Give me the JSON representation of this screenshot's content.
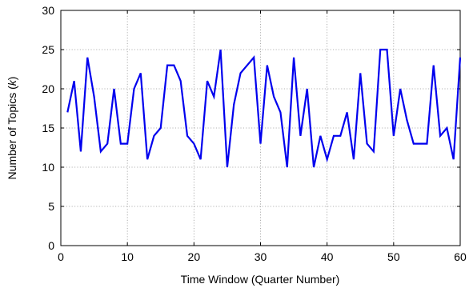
{
  "chart_data": {
    "type": "line",
    "title": "",
    "xlabel": "Time Window (Quarter Number)",
    "ylabel_prefix": "Number of Topics (",
    "ylabel_var": "k",
    "ylabel_suffix": ")",
    "xlim": [
      0,
      60
    ],
    "ylim": [
      0,
      30
    ],
    "xticks": [
      0,
      10,
      20,
      30,
      40,
      50,
      60
    ],
    "yticks": [
      0,
      5,
      10,
      15,
      20,
      25,
      30
    ],
    "grid": true,
    "line_color": "#0000ee",
    "series": [
      {
        "x": [
          1,
          2,
          3,
          4,
          5,
          6,
          7,
          8,
          9,
          10,
          11,
          12,
          13,
          14,
          15,
          16,
          17,
          18,
          19,
          20,
          21,
          22,
          23,
          24,
          25,
          26,
          27,
          28,
          29,
          30,
          31,
          32,
          33,
          34,
          35,
          36,
          37,
          38,
          39,
          40,
          41,
          42,
          43,
          44,
          45,
          46,
          47,
          48,
          49,
          50,
          51,
          52,
          53,
          54,
          55,
          56,
          57,
          58,
          59,
          60
        ],
        "y": [
          17,
          21,
          12,
          24,
          19,
          12,
          13,
          20,
          13,
          13,
          20,
          22,
          11,
          14,
          15,
          23,
          23,
          21,
          14,
          13,
          11,
          21,
          19,
          25,
          10,
          18,
          22,
          23,
          24,
          13,
          23,
          19,
          17,
          10,
          24,
          14,
          20,
          10,
          14,
          11,
          14,
          14,
          17,
          11,
          22,
          13,
          12,
          25,
          25,
          14,
          20,
          16,
          13,
          13,
          13,
          23,
          14,
          15,
          11,
          24
        ]
      }
    ]
  }
}
